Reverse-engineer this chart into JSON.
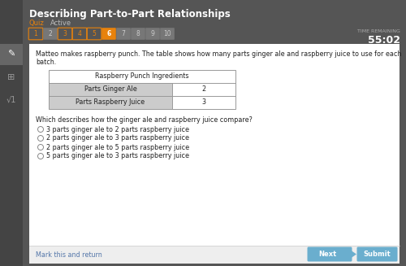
{
  "title": "Describing Part-to-Part Relationships",
  "subtitle_quiz": "Quiz",
  "subtitle_active": "Active",
  "bg_dark": "#555555",
  "bg_content": "#f2f2f2",
  "bg_white": "#ffffff",
  "nav_buttons": [
    "1",
    "2",
    "3",
    "4",
    "5",
    "6",
    "7",
    "8",
    "9",
    "10"
  ],
  "nav_active_index": 5,
  "nav_outlined_indices": [
    0,
    2,
    3,
    4
  ],
  "time_label": "TIME REMAINING",
  "time_value": "55:02",
  "question_text1": "Matteo makes raspberry punch. The table shows how many parts ginger ale and raspberry juice to use for each",
  "question_text2": "batch.",
  "table_title": "Raspberry Punch Ingredients",
  "table_rows": [
    [
      "Parts Ginger Ale",
      "2"
    ],
    [
      "Parts Raspberry Juice",
      "3"
    ]
  ],
  "table_header_bg": "#ffffff",
  "table_row_bg": "#cccccc",
  "question2": "Which describes how the ginger ale and raspberry juice compare?",
  "choices": [
    "3 parts ginger ale to 2 parts raspberry juice",
    "2 parts ginger ale to 3 parts raspberry juice",
    "2 parts ginger ale to 5 parts raspberry juice",
    "5 parts ginger ale to 3 parts raspberry juice"
  ],
  "bottom_link": "Mark this and return",
  "btn_next_color": "#6aaece",
  "btn_submit_color": "#6aaece",
  "btn_next_label": "Next",
  "btn_submit_label": "Submit",
  "orange": "#e8820c",
  "nav_box_color": "#777777",
  "left_sidebar_bg": "#444444",
  "sidebar_icon_active_bg": "#666666",
  "content_border_color": "#999999"
}
